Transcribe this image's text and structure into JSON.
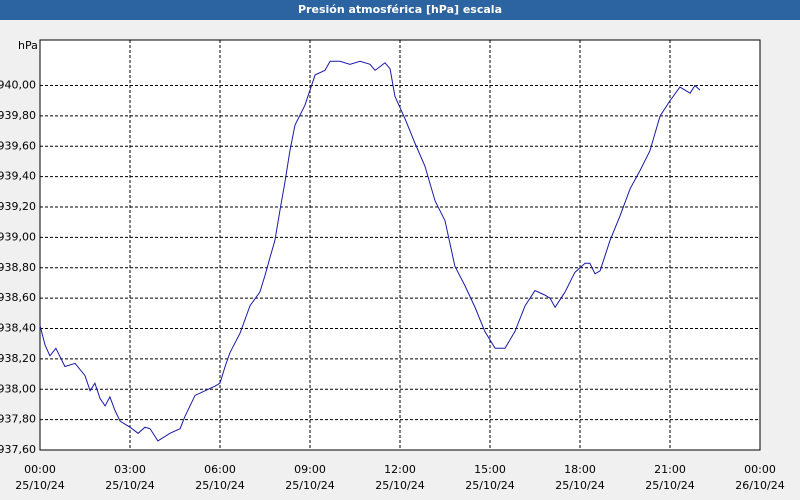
{
  "chart_data": {
    "type": "line",
    "title": "Presión atmosférica [hPa] escala",
    "y_label": "hPa",
    "x": [
      0,
      0.17,
      0.33,
      0.53,
      0.83,
      1.17,
      1.5,
      1.67,
      1.83,
      2,
      2.17,
      2.33,
      2.5,
      2.67,
      3,
      3.27,
      3.5,
      3.67,
      3.93,
      4.33,
      4.67,
      4.83,
      5,
      5.17,
      5.5,
      5.83,
      6,
      6.17,
      6.33,
      6.67,
      7,
      7.33,
      7.5,
      7.67,
      7.83,
      8,
      8.17,
      8.33,
      8.5,
      8.83,
      9.17,
      9.5,
      9.67,
      10,
      10.33,
      10.67,
      11,
      11.17,
      11.5,
      11.67,
      11.83,
      12.17,
      12.5,
      12.83,
      13.17,
      13.5,
      13.83,
      14.17,
      14.5,
      14.83,
      15.17,
      15.5,
      15.83,
      16.17,
      16.5,
      16.83,
      17,
      17.17,
      17.5,
      17.83,
      18.17,
      18.33,
      18.5,
      18.67,
      19,
      19.33,
      19.67,
      20,
      20.33,
      20.67,
      21,
      21.33,
      21.67,
      21.83,
      22
    ],
    "series": [
      {
        "name": "Presión",
        "color": "#1a1aa8",
        "values": [
          938.42,
          938.29,
          938.22,
          938.27,
          938.15,
          938.17,
          938.09,
          937.99,
          938.04,
          937.94,
          937.89,
          937.95,
          937.86,
          937.79,
          937.75,
          937.71,
          937.75,
          937.74,
          937.66,
          937.71,
          937.74,
          937.82,
          937.89,
          937.96,
          937.99,
          938.02,
          938.04,
          938.15,
          938.24,
          938.37,
          938.55,
          938.64,
          938.75,
          938.87,
          938.98,
          939.18,
          939.37,
          939.57,
          939.74,
          939.87,
          940.07,
          940.1,
          940.16,
          940.16,
          940.14,
          940.16,
          940.14,
          940.1,
          940.15,
          940.11,
          939.93,
          939.78,
          939.62,
          939.47,
          939.24,
          939.11,
          938.81,
          938.68,
          938.54,
          938.38,
          938.27,
          938.27,
          938.38,
          938.55,
          938.65,
          938.62,
          938.6,
          938.54,
          938.64,
          938.77,
          938.83,
          938.83,
          938.76,
          938.78,
          938.98,
          939.14,
          939.32,
          939.44,
          939.57,
          939.8,
          939.9,
          939.99,
          939.95,
          940.0,
          939.97
        ]
      }
    ],
    "xlim": [
      0,
      24
    ],
    "xticks": [
      {
        "value": 0,
        "label": "00:00\n25/10/24"
      },
      {
        "value": 3,
        "label": "03:00\n25/10/24"
      },
      {
        "value": 6,
        "label": "06:00\n25/10/24"
      },
      {
        "value": 9,
        "label": "09:00\n25/10/24"
      },
      {
        "value": 12,
        "label": "12:00\n25/10/24"
      },
      {
        "value": 15,
        "label": "15:00\n25/10/24"
      },
      {
        "value": 18,
        "label": "18:00\n25/10/24"
      },
      {
        "value": 21,
        "label": "21:00\n25/10/24"
      },
      {
        "value": 24,
        "label": "00:00\n26/10/24"
      }
    ],
    "ylim": [
      937.6,
      940.3
    ],
    "yticks": [
      {
        "value": 937.6,
        "label": "937,60"
      },
      {
        "value": 937.8,
        "label": "937,80"
      },
      {
        "value": 938.0,
        "label": "938,00"
      },
      {
        "value": 938.2,
        "label": "938,20"
      },
      {
        "value": 938.4,
        "label": "938,40"
      },
      {
        "value": 938.6,
        "label": "938,60"
      },
      {
        "value": 938.8,
        "label": "938,80"
      },
      {
        "value": 939.0,
        "label": "939,00"
      },
      {
        "value": 939.2,
        "label": "939,20"
      },
      {
        "value": 939.4,
        "label": "939,40"
      },
      {
        "value": 939.6,
        "label": "939,60"
      },
      {
        "value": 939.8,
        "label": "939,80"
      },
      {
        "value": 940.0,
        "label": "940,00"
      }
    ],
    "grid": true
  }
}
